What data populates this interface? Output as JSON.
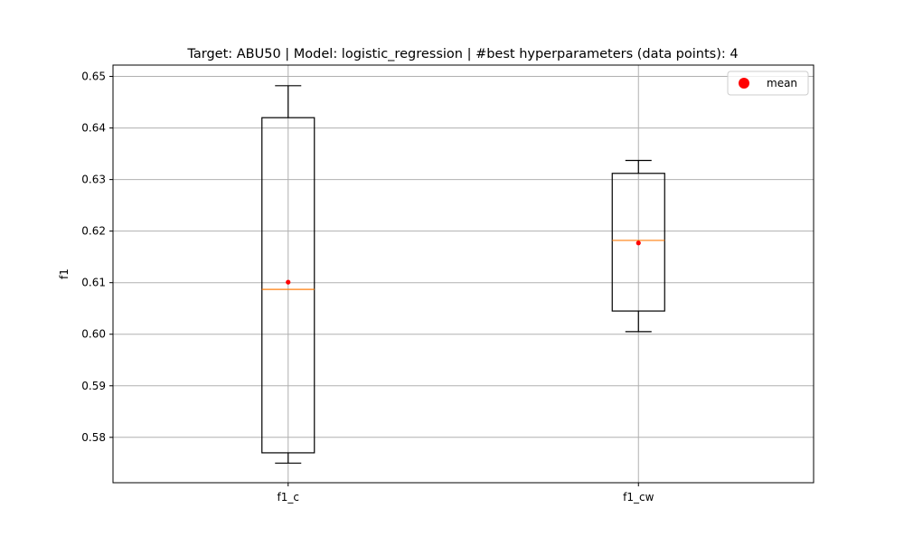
{
  "chart_data": {
    "type": "box",
    "title": "Target: ABU50 | Model: logistic_regression | #best hyperparameters (data points): 4",
    "xlabel": "",
    "ylabel": "f1",
    "ylim": [
      0.5712,
      0.6522
    ],
    "y_ticks": [
      "0.58",
      "0.59",
      "0.60",
      "0.61",
      "0.62",
      "0.63",
      "0.64",
      "0.65"
    ],
    "y_tick_values": [
      0.58,
      0.59,
      0.6,
      0.61,
      0.62,
      0.63,
      0.64,
      0.65
    ],
    "grid": true,
    "legend": {
      "position": "top-right",
      "entries": [
        {
          "label": "mean",
          "color": "#ff0000",
          "marker": "circle"
        }
      ]
    },
    "categories": [
      "f1_c",
      "f1_cw"
    ],
    "boxes": [
      {
        "label": "f1_c",
        "whisker_low": 0.575,
        "q1": 0.577,
        "median": 0.6087,
        "q3": 0.642,
        "whisker_high": 0.6482,
        "mean": 0.6101
      },
      {
        "label": "f1_cw",
        "whisker_low": 0.6005,
        "q1": 0.6045,
        "median": 0.6182,
        "q3": 0.6312,
        "whisker_high": 0.6337,
        "mean": 0.6177
      }
    ],
    "colors": {
      "box": "#000000",
      "median": "#ff7f0e",
      "mean": "#ff0000",
      "grid": "#b0b0b0"
    }
  }
}
